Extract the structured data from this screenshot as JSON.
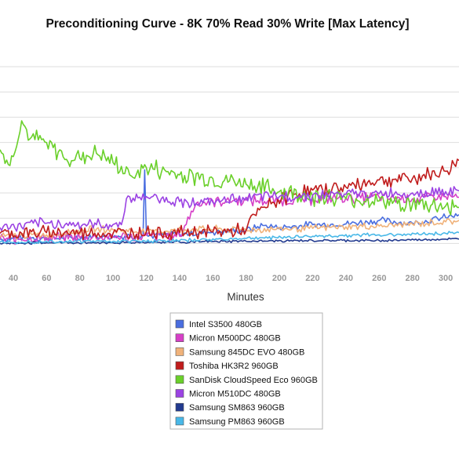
{
  "chart_data": {
    "type": "line",
    "title": "Preconditioning Curve - 8K 70% Read 30% Write [Max Latency]",
    "xlabel": "Minutes",
    "ylabel": "",
    "xlim": [
      32,
      308
    ],
    "ylim": [
      0,
      300
    ],
    "x_ticks": [
      40,
      60,
      80,
      100,
      120,
      140,
      160,
      180,
      200,
      220,
      240,
      260,
      280,
      300
    ],
    "y_ticks": [
      30,
      65,
      100,
      135,
      170,
      205,
      240,
      275
    ],
    "grid": true,
    "legend_position": "bottom-center",
    "series": [
      {
        "name": "Intel S3500 480GB",
        "color": "#4a6ee0",
        "x": [
          32,
          50,
          70,
          90,
          100,
          110,
          114,
          118,
          119,
          120,
          121,
          125,
          140,
          160,
          180,
          190,
          200,
          220,
          240,
          260,
          280,
          300,
          308
        ],
        "y": [
          36,
          38,
          37,
          40,
          39,
          41,
          40,
          41,
          132,
          45,
          40,
          42,
          43,
          46,
          48,
          55,
          52,
          56,
          57,
          62,
          58,
          66,
          70
        ]
      },
      {
        "name": "Micron M500DC 480GB",
        "color": "#d63fc7",
        "x": [
          32,
          60,
          100,
          140,
          150,
          160,
          180,
          200,
          220,
          240,
          260,
          280,
          300,
          308
        ],
        "y": [
          36,
          38,
          39,
          40,
          86,
          89,
          90,
          89,
          92,
          93,
          94,
          92,
          95,
          94
        ]
      },
      {
        "name": "Samsung 845DC EVO 480GB",
        "color": "#f0b27a",
        "x": [
          32,
          60,
          90,
          120,
          150,
          180,
          200,
          220,
          240,
          260,
          280,
          300,
          308
        ],
        "y": [
          40,
          42,
          50,
          46,
          50,
          49,
          50,
          51,
          53,
          54,
          57,
          60,
          62
        ]
      },
      {
        "name": "Toshiba HK3R2 960GB",
        "color": "#c01c1c",
        "x": [
          32,
          60,
          80,
          100,
          120,
          140,
          160,
          180,
          185,
          195,
          205,
          220,
          240,
          260,
          280,
          290,
          300,
          305,
          308
        ],
        "y": [
          44,
          45,
          45,
          44,
          46,
          45,
          46,
          48,
          70,
          85,
          96,
          104,
          108,
          118,
          120,
          126,
          130,
          140,
          145
        ]
      },
      {
        "name": "SanDisk CloudSpeed Eco 960GB",
        "color": "#6ad02a",
        "x": [
          32,
          38,
          45,
          50,
          60,
          70,
          80,
          90,
          100,
          110,
          120,
          140,
          160,
          180,
          200,
          220,
          240,
          260,
          280,
          300,
          308
        ],
        "y": [
          160,
          138,
          200,
          175,
          170,
          150,
          148,
          155,
          142,
          125,
          135,
          125,
          120,
          112,
          102,
          96,
          92,
          89,
          84,
          82,
          80
        ]
      },
      {
        "name": "Micron M510DC 480GB",
        "color": "#9b43e3",
        "x": [
          32,
          60,
          90,
          105,
          108,
          120,
          140,
          160,
          180,
          200,
          220,
          240,
          260,
          280,
          300,
          308
        ],
        "y": [
          52,
          58,
          56,
          56,
          92,
          95,
          88,
          87,
          94,
          95,
          97,
          98,
          99,
          100,
          102,
          103
        ]
      },
      {
        "name": "Samsung SM863 960GB",
        "color": "#223a8f",
        "x": [
          32,
          60,
          100,
          140,
          180,
          220,
          260,
          300,
          308
        ],
        "y": [
          30,
          31,
          31,
          32,
          33,
          34,
          34,
          36,
          36
        ]
      },
      {
        "name": "Samsung PM863 960GB",
        "color": "#48b8e8",
        "x": [
          32,
          60,
          100,
          140,
          180,
          220,
          260,
          300,
          308
        ],
        "y": [
          32,
          33,
          33,
          34,
          37,
          40,
          42,
          44,
          45
        ]
      }
    ]
  }
}
